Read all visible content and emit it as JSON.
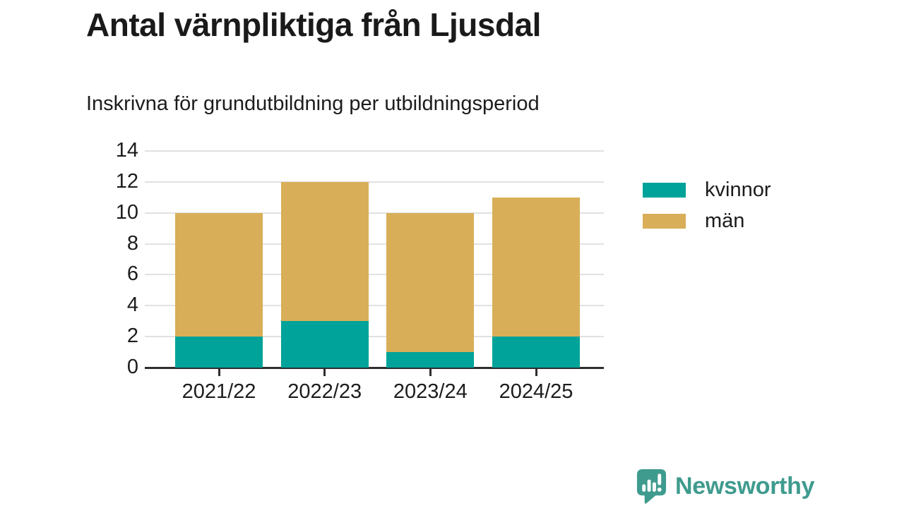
{
  "header": {
    "title": "Antal värnpliktiga från Ljusdal",
    "subtitle": "Inskrivna för grundutbildning per utbildningsperiod"
  },
  "chart_data": {
    "type": "bar",
    "stacked": true,
    "title": "Antal värnpliktiga från Ljusdal",
    "subtitle": "Inskrivna för grundutbildning per utbildningsperiod",
    "categories": [
      "2021/22",
      "2022/23",
      "2023/24",
      "2024/25"
    ],
    "series": [
      {
        "name": "kvinnor",
        "color": "#00a39a",
        "values": [
          2,
          3,
          1,
          2
        ]
      },
      {
        "name": "män",
        "color": "#d9ae58",
        "values": [
          8,
          9,
          9,
          9
        ]
      }
    ],
    "totals": [
      10,
      12,
      10,
      11
    ],
    "xlabel": "",
    "ylabel": "",
    "ylim": [
      0,
      14
    ],
    "yticks": [
      0,
      2,
      4,
      6,
      8,
      10,
      12,
      14
    ],
    "grid": true,
    "legend_position": "right-top"
  },
  "branding": {
    "logo_text": "Newsworthy",
    "logo_color": "#3f9b8e",
    "logo_icon": "speech-bubble-bar-chart-icon"
  },
  "colors": {
    "grid": "#e1e1e1",
    "axis": "#2e2e2e",
    "text": "#1c1c1c",
    "title_text": "#1a1a1a",
    "background": "#ffffff"
  }
}
